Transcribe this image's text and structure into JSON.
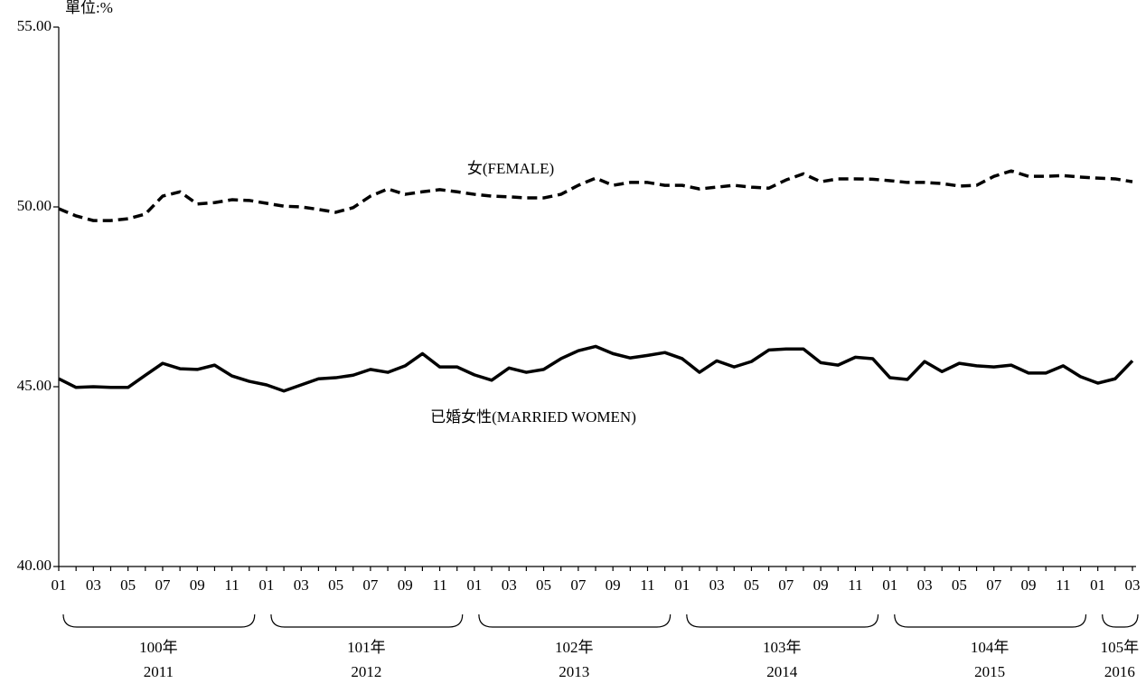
{
  "chart_data": {
    "type": "line",
    "unit_label": "單位:%",
    "categories": [
      "01",
      null,
      "03",
      null,
      "05",
      null,
      "07",
      null,
      "09",
      null,
      "11",
      null,
      "01",
      null,
      "03",
      null,
      "05",
      null,
      "07",
      null,
      "09",
      null,
      "11",
      null,
      "01",
      null,
      "03",
      null,
      "05",
      null,
      "07",
      null,
      "09",
      null,
      "11",
      null,
      "01",
      null,
      "03",
      null,
      "05",
      null,
      "07",
      null,
      "09",
      null,
      "11",
      null,
      "01",
      null,
      "03",
      null,
      "05",
      null,
      "07",
      null,
      "09",
      null,
      "11",
      null,
      "01",
      null,
      "03"
    ],
    "year_groups": [
      {
        "roc": "100年",
        "year": "2011"
      },
      {
        "roc": "101年",
        "year": "2012"
      },
      {
        "roc": "102年",
        "year": "2013"
      },
      {
        "roc": "103年",
        "year": "2014"
      },
      {
        "roc": "104年",
        "year": "2015"
      },
      {
        "roc": "105年",
        "year": "2016"
      }
    ],
    "series": [
      {
        "name": "女(FEMALE)",
        "color": "#000000",
        "dashed": true,
        "values": [
          49.95,
          49.75,
          49.62,
          49.62,
          49.67,
          49.8,
          50.3,
          50.42,
          50.08,
          50.12,
          50.2,
          50.18,
          50.1,
          50.02,
          50.0,
          49.93,
          49.85,
          49.98,
          50.3,
          50.5,
          50.35,
          50.42,
          50.48,
          50.42,
          50.35,
          50.3,
          50.28,
          50.25,
          50.25,
          50.35,
          50.6,
          50.8,
          50.6,
          50.68,
          50.68,
          50.6,
          50.6,
          50.5,
          50.55,
          50.6,
          50.55,
          50.52,
          50.75,
          50.92,
          50.7,
          50.78,
          50.78,
          50.77,
          50.73,
          50.68,
          50.68,
          50.65,
          50.58,
          50.6,
          50.85,
          51.0,
          50.85,
          50.85,
          50.87,
          50.83,
          50.8,
          50.78,
          50.7
        ]
      },
      {
        "name": "已婚女性(MARRIED WOMEN)",
        "color": "#000000",
        "dashed": false,
        "values": [
          45.22,
          44.98,
          45.0,
          44.98,
          44.98,
          45.32,
          45.65,
          45.5,
          45.48,
          45.6,
          45.3,
          45.15,
          45.05,
          44.88,
          45.05,
          45.22,
          45.25,
          45.32,
          45.48,
          45.4,
          45.58,
          45.92,
          45.55,
          45.55,
          45.33,
          45.18,
          45.52,
          45.4,
          45.48,
          45.78,
          46.0,
          46.12,
          45.92,
          45.8,
          45.87,
          45.95,
          45.78,
          45.4,
          45.72,
          45.55,
          45.7,
          46.02,
          46.05,
          46.05,
          45.67,
          45.6,
          45.82,
          45.78,
          45.25,
          45.2,
          45.7,
          45.42,
          45.65,
          45.58,
          45.55,
          45.6,
          45.38,
          45.38,
          45.58,
          45.28,
          45.1,
          45.22,
          45.72
        ]
      }
    ],
    "ylim": [
      40,
      55
    ],
    "yticks": [
      {
        "value": 40,
        "label": "40.00"
      },
      {
        "value": 45,
        "label": "45.00"
      },
      {
        "value": 50,
        "label": "50.00"
      },
      {
        "value": 55,
        "label": "55.00"
      }
    ],
    "grid": false
  }
}
